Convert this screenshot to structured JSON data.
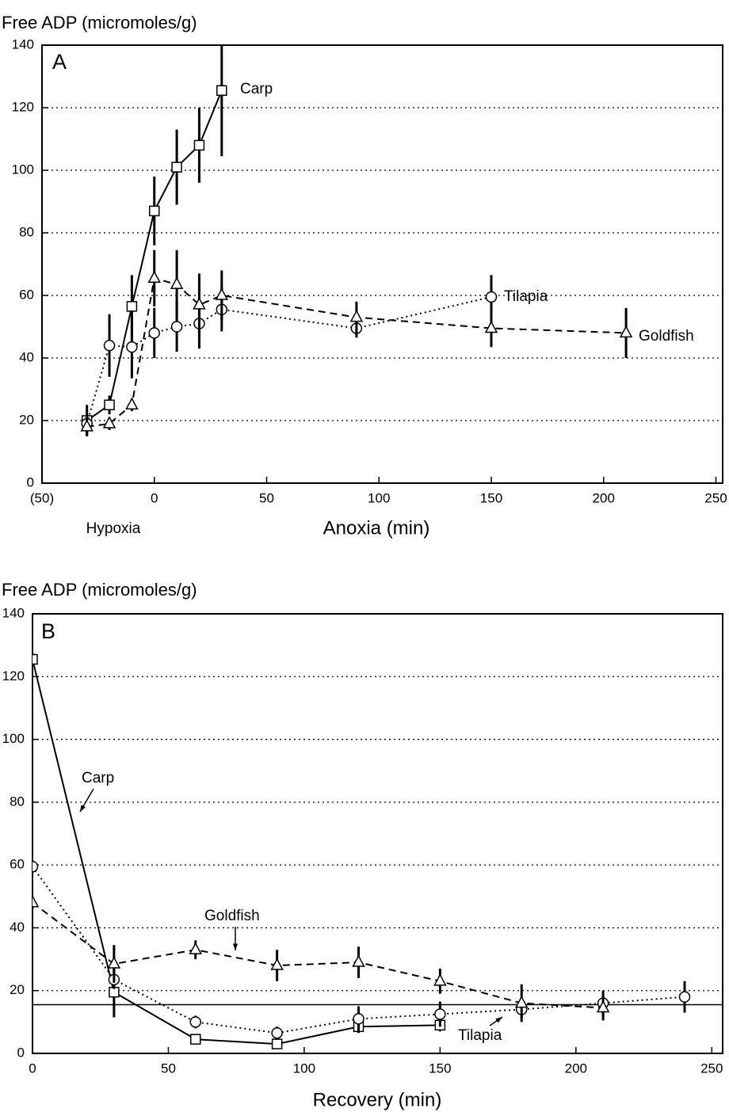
{
  "chart_data": [
    {
      "type": "line",
      "title": "Free ADP (micromoles/g)",
      "panel_label": "A",
      "xlabel_left": "Hypoxia",
      "xlabel": "Anoxia (min)",
      "xlim": [
        -50,
        253
      ],
      "xticks": [
        {
          "value": -50,
          "label": "(50)"
        },
        0,
        50,
        100,
        150,
        200,
        250
      ],
      "ylim": [
        0,
        140
      ],
      "yticks": [
        0,
        20,
        40,
        60,
        80,
        100,
        120,
        140
      ],
      "grid": true,
      "series": [
        {
          "name": "Carp",
          "color": "#000000",
          "line_style": "solid",
          "marker": "square",
          "x": [
            -30,
            -20,
            -10,
            0,
            10,
            20,
            30
          ],
          "values": [
            20,
            25,
            56.5,
            87,
            101,
            108,
            125.5
          ],
          "errors": [
            5,
            3,
            10,
            11,
            12,
            12,
            21
          ]
        },
        {
          "name": "Tilapia",
          "color": "#000000",
          "line_style": "dotted",
          "marker": "circle",
          "x": [
            -30,
            -20,
            -10,
            0,
            10,
            20,
            30,
            90,
            150
          ],
          "values": [
            19,
            44,
            43.5,
            48,
            50,
            51,
            55.5,
            49.5,
            59.5
          ],
          "errors": [
            3,
            10,
            10,
            8,
            8,
            8,
            7,
            3,
            7
          ]
        },
        {
          "name": "Goldfish",
          "color": "#000000",
          "line_style": "dashed",
          "marker": "triangle",
          "x": [
            -30,
            -20,
            -10,
            0,
            10,
            20,
            30,
            90,
            150,
            210
          ],
          "values": [
            18,
            19,
            25,
            65.5,
            63.5,
            57,
            60,
            53,
            49.5,
            48
          ],
          "errors": [
            3,
            2,
            2,
            9,
            11,
            10,
            8,
            5,
            6,
            8
          ]
        }
      ],
      "annotations": [
        "Carp",
        "Tilapia",
        "Goldfish"
      ]
    },
    {
      "type": "line",
      "title": "Free ADP (micromoles/g)",
      "panel_label": "B",
      "xlabel": "Recovery (min)",
      "xlim": [
        0,
        254
      ],
      "xticks": [
        0,
        50,
        100,
        150,
        200,
        250
      ],
      "ylim": [
        0,
        140
      ],
      "yticks": [
        0,
        20,
        40,
        60,
        80,
        100,
        120,
        140
      ],
      "grid": true,
      "reference_line": 15.5,
      "series": [
        {
          "name": "Carp",
          "color": "#000000",
          "line_style": "solid",
          "marker": "square",
          "x": [
            0,
            30,
            60,
            90,
            120,
            150
          ],
          "values": [
            125.5,
            19.5,
            4.5,
            3,
            8.5,
            9
          ],
          "errors": [
            2,
            8,
            1,
            1,
            2,
            2
          ]
        },
        {
          "name": "Tilapia",
          "color": "#000000",
          "line_style": "dotted",
          "marker": "circle",
          "x": [
            0,
            30,
            60,
            90,
            120,
            150,
            180,
            210,
            240
          ],
          "values": [
            59.5,
            23.5,
            10,
            6.5,
            11,
            12.5,
            14,
            16,
            18
          ],
          "errors": [
            2,
            3,
            2,
            2,
            4,
            4,
            3,
            4,
            5
          ]
        },
        {
          "name": "Goldfish",
          "color": "#000000",
          "line_style": "dashed",
          "marker": "triangle",
          "x": [
            0,
            30,
            60,
            90,
            120,
            150,
            180,
            210
          ],
          "values": [
            48,
            28.5,
            33,
            28,
            29,
            23,
            16,
            14.5
          ],
          "errors": [
            2,
            6,
            3,
            5,
            5,
            4,
            6,
            4
          ]
        }
      ],
      "annotations": [
        "Carp",
        "Goldfish",
        "Tilapia"
      ]
    }
  ]
}
